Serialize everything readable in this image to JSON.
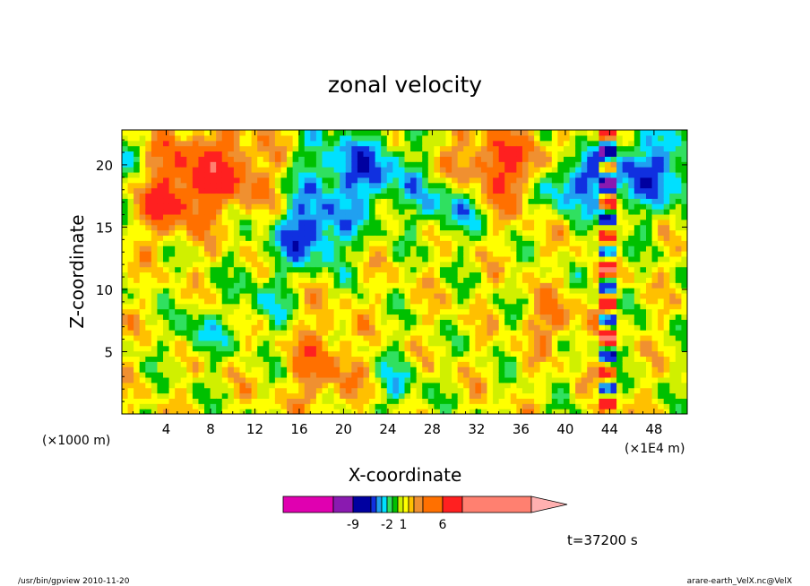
{
  "chart_data": {
    "type": "heatmap",
    "title": "zonal velocity",
    "xlabel": "X-coordinate",
    "ylabel": "Z-coordinate",
    "x_unit_left": "(×1000 m)",
    "x_unit_right": "(×1E4 m)",
    "xlim": [
      0,
      51
    ],
    "ylim": [
      0,
      22.8
    ],
    "x_ticks": [
      "4",
      "8",
      "12",
      "16",
      "20",
      "24",
      "28",
      "32",
      "36",
      "40",
      "44",
      "48"
    ],
    "x_tick_values": [
      4,
      8,
      12,
      16,
      20,
      24,
      28,
      32,
      36,
      40,
      44,
      48
    ],
    "y_ticks": [
      "5",
      "10",
      "15",
      "20"
    ],
    "y_tick_values": [
      5,
      10,
      15,
      20
    ],
    "colorbar": {
      "levels": [
        -18,
        -9,
        -6,
        -4,
        -3,
        -2,
        -1,
        0,
        1,
        2,
        3,
        4,
        6,
        9,
        18
      ],
      "colors": [
        "#e000b0",
        "#8a1ab0",
        "#0000a0",
        "#1030e0",
        "#20a0f0",
        "#00e0ff",
        "#30e060",
        "#00c000",
        "#d0f000",
        "#ffff00",
        "#ffc000",
        "#f09030",
        "#ff7000",
        "#ff2020",
        "#ff8070",
        "#ffb0b0"
      ],
      "labels": [
        "-9",
        "-2",
        "1",
        "6"
      ],
      "label_values": [
        -9,
        -2,
        1,
        6
      ]
    },
    "time_label": "t=37200 s"
  },
  "footer": {
    "left": "/usr/bin/gpview  2010-11-20",
    "right": "arare-earth_VelX.nc@VelX"
  }
}
